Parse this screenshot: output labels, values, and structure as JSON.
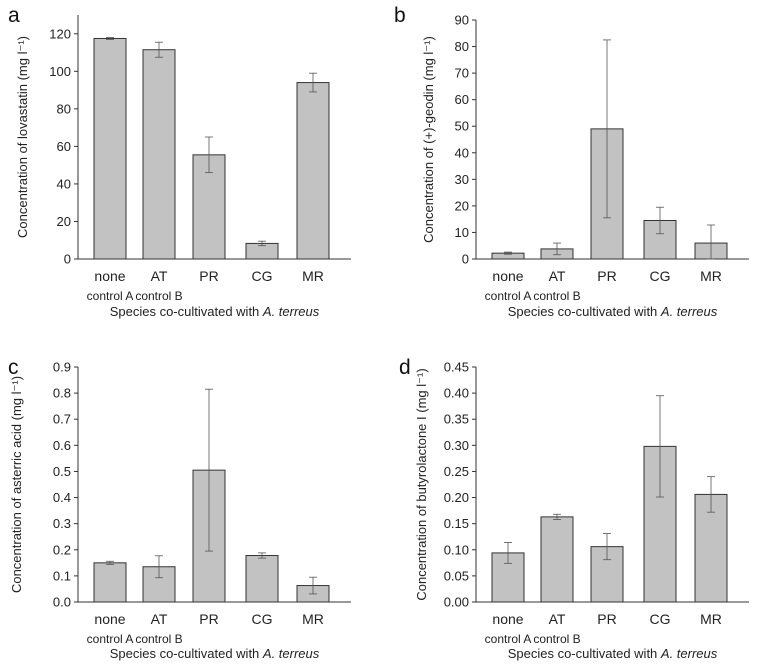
{
  "figure": {
    "xlabel_prefix": "Species co-cultivated with ",
    "xlabel_species": "A. terreus"
  },
  "chart_data": [
    {
      "type": "bar",
      "panel": "a",
      "ylabel": "Concentration of lovastatin (mg l⁻¹)",
      "categories": [
        "none",
        "AT",
        "PR",
        "CG",
        "MR"
      ],
      "sublabels": [
        "control A",
        "control B",
        "",
        "",
        ""
      ],
      "values": [
        117.5,
        111.5,
        55.5,
        8.3,
        94.0
      ],
      "errors": [
        0.5,
        4.0,
        9.5,
        1.2,
        5.0
      ],
      "ylim": [
        0,
        130
      ],
      "yticks": [
        0,
        20,
        40,
        60,
        80,
        100,
        120
      ],
      "ytick_labels": [
        "0",
        "20",
        "40",
        "60",
        "80",
        "100",
        "120"
      ]
    },
    {
      "type": "bar",
      "panel": "b",
      "ylabel": "Concentration of (+)-geodin (mg l⁻¹)",
      "categories": [
        "none",
        "AT",
        "PR",
        "CG",
        "MR"
      ],
      "sublabels": [
        "control A",
        "control B",
        "",
        "",
        ""
      ],
      "values": [
        2.2,
        3.8,
        49.0,
        14.5,
        6.0
      ],
      "errors": [
        0.4,
        2.2,
        33.5,
        5.0,
        6.8
      ],
      "ylim": [
        0,
        90
      ],
      "yticks": [
        0,
        10,
        20,
        30,
        40,
        50,
        60,
        70,
        80,
        90
      ],
      "ytick_labels": [
        "0",
        "10",
        "20",
        "30",
        "40",
        "50",
        "60",
        "70",
        "80",
        "90"
      ]
    },
    {
      "type": "bar",
      "panel": "c",
      "ylabel": "Concentration of asterric acid (mg l⁻¹)",
      "categories": [
        "none",
        "AT",
        "PR",
        "CG",
        "MR"
      ],
      "sublabels": [
        "control A",
        "control B",
        "",
        "",
        ""
      ],
      "values": [
        0.15,
        0.135,
        0.505,
        0.178,
        0.063
      ],
      "errors": [
        0.006,
        0.042,
        0.31,
        0.01,
        0.032
      ],
      "ylim": [
        0,
        0.9
      ],
      "yticks": [
        0,
        0.1,
        0.2,
        0.3,
        0.4,
        0.5,
        0.6,
        0.7,
        0.8,
        0.9
      ],
      "ytick_labels": [
        "0.0",
        "0.1",
        "0.2",
        "0.3",
        "0.4",
        "0.5",
        "0.6",
        "0.7",
        "0.8",
        "0.9"
      ]
    },
    {
      "type": "bar",
      "panel": "d",
      "ylabel": "Concentration of butyrolactone I (mg l⁻¹)",
      "categories": [
        "none",
        "AT",
        "PR",
        "CG",
        "MR"
      ],
      "sublabels": [
        "control A",
        "control B",
        "",
        "",
        ""
      ],
      "values": [
        0.094,
        0.163,
        0.106,
        0.298,
        0.206
      ],
      "errors": [
        0.02,
        0.005,
        0.025,
        0.097,
        0.034
      ],
      "ylim": [
        0,
        0.45
      ],
      "yticks": [
        0,
        0.05,
        0.1,
        0.15,
        0.2,
        0.25,
        0.3,
        0.35,
        0.4,
        0.45
      ],
      "ytick_labels": [
        "0.00",
        "0.05",
        "0.10",
        "0.15",
        "0.20",
        "0.25",
        "0.30",
        "0.35",
        "0.40",
        "0.45"
      ]
    }
  ]
}
